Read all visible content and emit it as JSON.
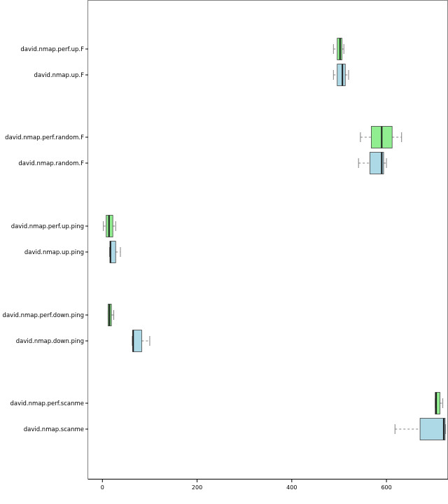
{
  "chart_data": {
    "type": "boxplot",
    "orientation": "horizontal",
    "xlim": [
      -30,
      730
    ],
    "x_ticks": [
      0,
      200,
      400,
      600
    ],
    "x_tick_labels": [
      "0",
      "200",
      "400",
      "600"
    ],
    "grid": false,
    "legend": "none",
    "series_colors": {
      "perf": "#90ee90",
      "baseline": "#add8e6",
      "median": "#1a1a1a",
      "whisker": "#808080"
    },
    "boxes": [
      {
        "label": "david.nmap.perf.up.F",
        "group": "perf",
        "whisker_low": 488,
        "q1": 496,
        "median": 502,
        "q3": 506,
        "whisker_high": 510
      },
      {
        "label": "david.nmap.up.F",
        "group": "baseline",
        "whisker_low": 488,
        "q1": 496,
        "median": 507,
        "q3": 513,
        "whisker_high": 520
      },
      {
        "label": "david.nmap.perf.random.F",
        "group": "perf",
        "whisker_low": 545,
        "q1": 568,
        "median": 590,
        "q3": 612,
        "whisker_high": 632
      },
      {
        "label": "david.nmap.random.F",
        "group": "baseline",
        "whisker_low": 541,
        "q1": 565,
        "median": 590,
        "q3": 594,
        "whisker_high": 600
      },
      {
        "label": "david.nmap.perf.up.ping",
        "group": "perf",
        "whisker_low": 2,
        "q1": 8,
        "median": 14,
        "q3": 22,
        "whisker_high": 28
      },
      {
        "label": "david.nmap.up.ping",
        "group": "baseline",
        "whisker_low": 15,
        "q1": 16,
        "median": 17,
        "q3": 28,
        "whisker_high": 38
      },
      {
        "label": "david.nmap.perf.down.ping",
        "group": "perf",
        "whisker_low": 12,
        "q1": 12,
        "median": 15,
        "q3": 19,
        "whisker_high": 24
      },
      {
        "label": "david.nmap.down.ping",
        "group": "baseline",
        "whisker_low": 63,
        "q1": 64,
        "median": 65,
        "q3": 83,
        "whisker_high": 100
      },
      {
        "label": "david.nmap.perf.scanme",
        "group": "perf",
        "whisker_low": 703,
        "q1": 703,
        "median": 705,
        "q3": 713,
        "whisker_high": 719
      },
      {
        "label": "david.nmap.scanme",
        "group": "baseline",
        "whisker_low": 618,
        "q1": 671,
        "median": 721,
        "q3": 724,
        "whisker_high": 725
      }
    ]
  }
}
